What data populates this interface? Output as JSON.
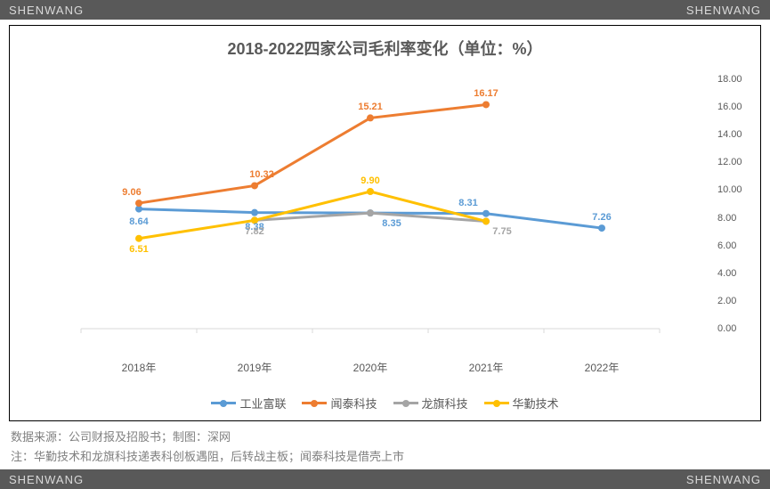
{
  "watermark": "SHENWANG",
  "chart": {
    "type": "line",
    "title": "2018-2022四家公司毛利率变化（单位：%）",
    "title_fontsize": 18,
    "title_color": "#595959",
    "background_color": "#ffffff",
    "border_color": "#000000",
    "x_categories": [
      "2018年",
      "2019年",
      "2020年",
      "2021年",
      "2022年"
    ],
    "y_axis": {
      "min": 0.0,
      "max": 18.0,
      "step": 2.0,
      "position": "right",
      "label_fontsize": 11,
      "label_color": "#595959"
    },
    "x_axis": {
      "label_fontsize": 12,
      "label_color": "#595959",
      "tick_mark_color": "#d9d9d9"
    },
    "gridlines": {
      "show_horizontal": false,
      "show_vertical": false,
      "baseline_color": "#d9d9d9"
    },
    "line_width": 3,
    "marker_size": 8,
    "marker_style": "circle",
    "series": [
      {
        "name": "工业富联",
        "color": "#5b9bd5",
        "values": [
          8.64,
          8.38,
          8.35,
          8.31,
          7.26
        ],
        "labels_shown": [
          "8.64",
          "8.38",
          "8.35",
          "8.31",
          "7.26"
        ],
        "label_color": "#5b9bd5"
      },
      {
        "name": "闻泰科技",
        "color": "#ed7d31",
        "values": [
          9.06,
          10.32,
          15.21,
          16.17,
          null
        ],
        "labels_shown": [
          "9.06",
          "10.32",
          "15.21",
          "16.17",
          ""
        ],
        "label_color": "#ed7d31"
      },
      {
        "name": "龙旗科技",
        "color": "#a5a5a5",
        "values": [
          null,
          7.82,
          8.35,
          7.75,
          null
        ],
        "labels_shown": [
          "",
          "7.82",
          "",
          "7.75",
          ""
        ],
        "label_color": "#a5a5a5"
      },
      {
        "name": "华勤技术",
        "color": "#ffc000",
        "values": [
          6.51,
          7.82,
          9.9,
          7.75,
          null
        ],
        "labels_shown": [
          "6.51",
          "",
          "9.90",
          "",
          ""
        ],
        "label_color": "#ffc000"
      }
    ]
  },
  "footer": {
    "line1": "数据来源：公司财报及招股书；制图：深网",
    "line2": "注：华勤技术和龙旗科技递表科创板遇阻，后转战主板；闻泰科技是借壳上市",
    "color": "#808080",
    "fontsize": 13
  }
}
